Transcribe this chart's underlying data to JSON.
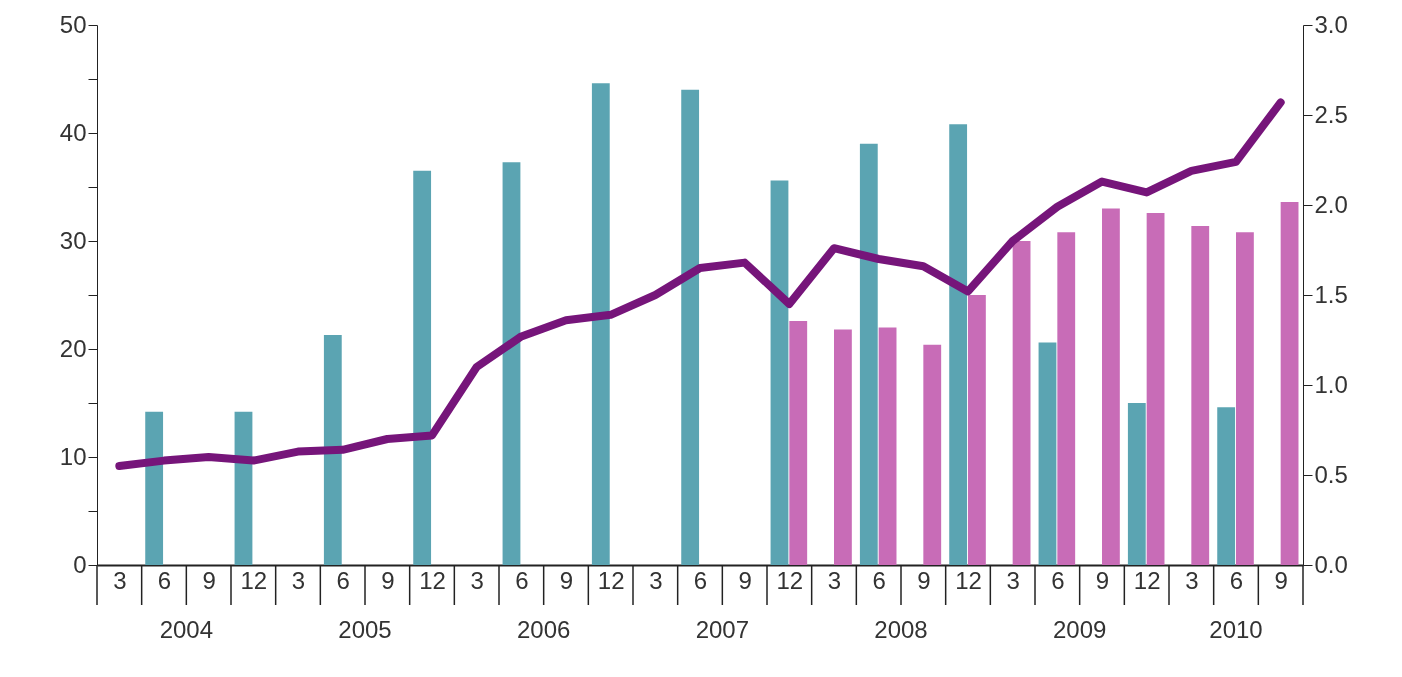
{
  "chart_data": {
    "type": "bar",
    "categories": [
      "3",
      "6",
      "9",
      "12",
      "3",
      "6",
      "9",
      "12",
      "3",
      "6",
      "9",
      "12",
      "3",
      "6",
      "9",
      "12",
      "3",
      "6",
      "9",
      "12",
      "3",
      "6",
      "9",
      "12",
      "3",
      "6",
      "9"
    ],
    "series": [
      {
        "color": "#5ba4b2",
        "values": [
          null,
          14.2,
          null,
          14.2,
          null,
          21.3,
          null,
          36.5,
          null,
          37.3,
          null,
          44.6,
          null,
          44,
          null,
          35.6,
          null,
          39,
          null,
          40.8,
          null,
          20.6,
          null,
          15,
          null,
          14.6,
          null
        ]
      },
      {
        "color": "#c86cb7",
        "values": [
          null,
          null,
          null,
          null,
          null,
          null,
          null,
          null,
          null,
          null,
          null,
          null,
          null,
          null,
          null,
          22.6,
          21.8,
          22,
          20.4,
          25,
          30,
          30.8,
          33,
          32.6,
          31.4,
          30.8,
          33.6
        ]
      },
      {
        "type": "line",
        "axis": "y2",
        "color": "#76157a",
        "values": [
          0.55,
          0.58,
          0.6,
          0.58,
          0.63,
          0.64,
          0.7,
          0.72,
          1.1,
          1.27,
          1.36,
          1.39,
          1.5,
          1.65,
          1.68,
          1.45,
          1.76,
          1.7,
          1.66,
          1.52,
          1.8,
          1.99,
          2.13,
          2.07,
          2.19,
          2.24,
          2.57
        ]
      }
    ],
    "ylim": [
      0,
      50
    ],
    "yticks": [
      0,
      {
        "value": 5,
        "label": null
      },
      10,
      {
        "value": 15,
        "label": null
      },
      20,
      {
        "value": 25,
        "label": null
      },
      30,
      {
        "value": 35,
        "label": null
      },
      40,
      {
        "value": 45,
        "label": null
      },
      50
    ],
    "y2lim": [
      0,
      3
    ],
    "y2ticks": [
      {
        "value": 0,
        "label": "0.0"
      },
      {
        "value": 0.5,
        "label": "0.5"
      },
      {
        "value": 1,
        "label": "1.0"
      },
      {
        "value": 1.5,
        "label": "1.5"
      },
      {
        "value": 2,
        "label": "2.0"
      },
      {
        "value": 2.5,
        "label": "2.5"
      },
      {
        "value": 3,
        "label": "3.0"
      }
    ],
    "annotations": [
      "2004",
      "2005",
      "2006",
      "2007",
      "2008",
      "2009",
      "2010"
    ],
    "grid": false,
    "legend": false
  }
}
